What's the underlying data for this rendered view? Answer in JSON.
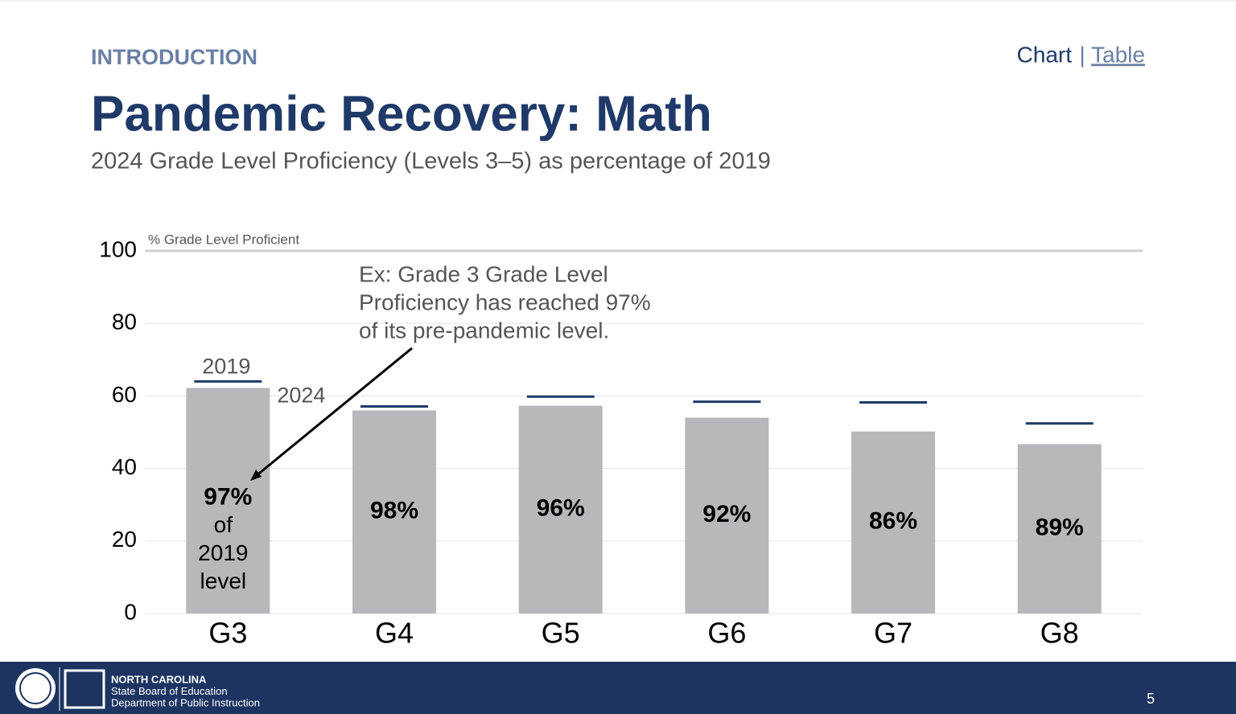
{
  "header": {
    "section": "INTRODUCTION",
    "nav": {
      "current": "Chart",
      "separator": "|",
      "link": "Table"
    }
  },
  "chart_data": {
    "type": "bar",
    "title": "Pandemic Recovery: Math",
    "subtitle": "2024 Grade Level Proficiency (Levels 3–5) as percentage of 2019",
    "y_label": "% Grade Level Proficient",
    "categories": [
      "G3",
      "G4",
      "G5",
      "G6",
      "G7",
      "G8"
    ],
    "series": [
      {
        "name": "2024",
        "color": "#b7b8ba",
        "values": [
          62.2,
          56,
          57.3,
          54,
          50.2,
          46.7
        ]
      },
      {
        "name": "2019",
        "color": "#1f3a68",
        "values": [
          64,
          57.1,
          59.8,
          58.4,
          58.2,
          52.4
        ]
      }
    ],
    "bar_labels": [
      "97%",
      "98%",
      "96%",
      "92%",
      "86%",
      "89%"
    ],
    "bar_note": [
      "of",
      "2019",
      "level"
    ],
    "annotation": [
      "Ex: Grade 3 Grade Level",
      "Proficiency has reached 97%",
      "of its pre-pandemic level."
    ],
    "ylim": [
      0,
      100
    ],
    "yticks": [
      0,
      20,
      40,
      60,
      80,
      100
    ],
    "grid": true
  },
  "footer": {
    "lines": [
      "NORTH CAROLINA",
      "State Board of Education",
      "Department of Public Instruction"
    ],
    "page": "5"
  }
}
